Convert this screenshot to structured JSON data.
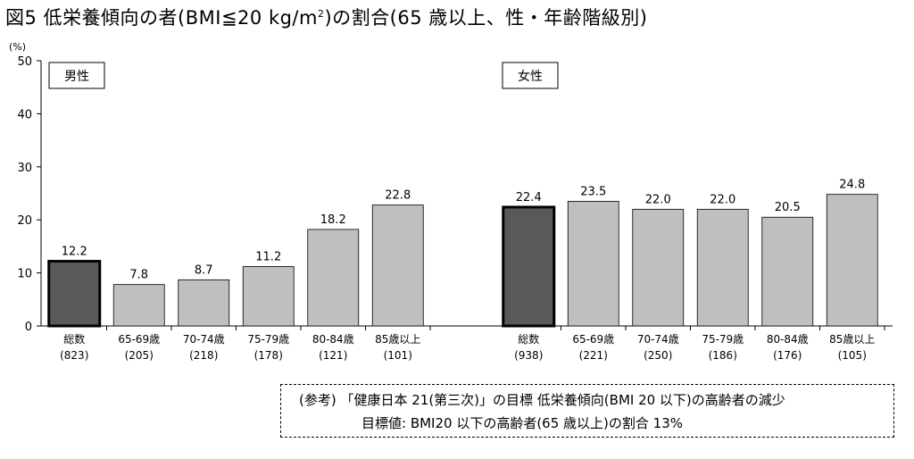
{
  "title_prefix": "図5  低栄養傾向の者(BMI≦20 kg/m",
  "title_sup": "2",
  "title_suffix": ")の割合(65 歳以上、性・年齢階級別)",
  "note": {
    "line1": "(参考) 「健康日本 21(第三次)」の目標  低栄養傾向(BMI 20 以下)の高齢者の減少",
    "line2": "目標値:  BMI20 以下の高齢者(65 歳以上)の割合  13%"
  },
  "chart_data": {
    "type": "bar",
    "y_unit_label": "(%)",
    "ylim": [
      0,
      50
    ],
    "yticks": [
      0,
      10,
      20,
      30,
      40,
      50
    ],
    "grid": false,
    "colors": {
      "total_bar": "#595959",
      "age_bar": "#bfbfbf",
      "bar_outline": "#000000"
    },
    "groups": [
      {
        "name": "男性",
        "categories": [
          "総数",
          "65-69歳",
          "70-74歳",
          "75-79歳",
          "80-84歳",
          "85歳以上"
        ],
        "n": [
          "(823)",
          "(205)",
          "(218)",
          "(178)",
          "(121)",
          "(101)"
        ],
        "values": [
          12.2,
          7.8,
          8.7,
          11.2,
          18.2,
          22.8
        ],
        "value_labels": [
          "12.2",
          "7.8",
          "8.7",
          "11.2",
          "18.2",
          "22.8"
        ]
      },
      {
        "name": "女性",
        "categories": [
          "総数",
          "65-69歳",
          "70-74歳",
          "75-79歳",
          "80-84歳",
          "85歳以上"
        ],
        "n": [
          "(938)",
          "(221)",
          "(250)",
          "(186)",
          "(176)",
          "(105)"
        ],
        "values": [
          22.4,
          23.5,
          22.0,
          22.0,
          20.5,
          24.8
        ],
        "value_labels": [
          "22.4",
          "23.5",
          "22.0",
          "22.0",
          "20.5",
          "24.8"
        ]
      }
    ]
  }
}
